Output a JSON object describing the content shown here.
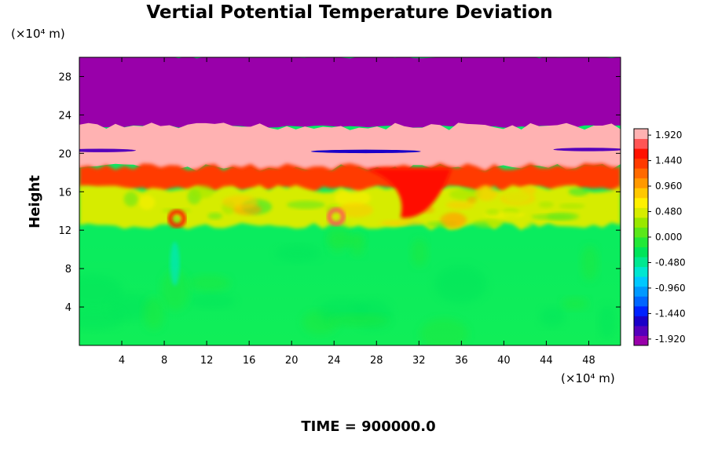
{
  "chart_data": {
    "type": "heatmap",
    "title": "Vertial Potential Temperature Deviation",
    "ylabel": "Height",
    "xlabel": "",
    "y_unit": "(×10⁴ m)",
    "x_unit": "(×10⁴ m)",
    "time_label": "TIME = 900000.0",
    "xlim": [
      0,
      51
    ],
    "ylim": [
      0,
      30
    ],
    "x_ticks": [
      4,
      8,
      12,
      16,
      20,
      24,
      28,
      32,
      36,
      40,
      44,
      48
    ],
    "y_ticks": [
      4,
      8,
      12,
      16,
      20,
      24,
      28
    ],
    "colorbar": {
      "min": -2.04,
      "max": 2.04,
      "labels": [
        "1.920",
        "1.440",
        "0.960",
        "0.480",
        "0.000",
        "-0.480",
        "-0.960",
        "-1.440",
        "-1.920"
      ],
      "label_values": [
        1.92,
        1.44,
        0.96,
        0.48,
        0.0,
        -0.48,
        -0.96,
        -1.44,
        -1.92
      ]
    },
    "field_layers": [
      {
        "name": "upper-purple",
        "y_bottom": 22.8,
        "y_top": 30,
        "value": -2.0
      },
      {
        "name": "pink-band",
        "y_bottom": 18.5,
        "y_top": 22.8,
        "value": 2.0
      },
      {
        "name": "red-orange-turbulence",
        "y_bottom": 16.2,
        "y_top": 18.6,
        "value": 1.3
      },
      {
        "name": "yellow-green-turbulent",
        "y_bottom": 12.4,
        "y_top": 16.3,
        "value": 0.4
      },
      {
        "name": "lower-green",
        "y_bottom": 0,
        "y_top": 12.4,
        "value": -0.1
      }
    ],
    "features": [
      {
        "name": "central-red-plume",
        "x": 31,
        "y": 16.3,
        "value": 1.6
      },
      {
        "name": "red-curl-24",
        "x": 24.2,
        "y": 13.4,
        "value": 1.7
      },
      {
        "name": "red-curl-9",
        "x": 9.2,
        "y": 13.2,
        "value": 1.5
      },
      {
        "name": "blue-streak-20",
        "x": 2,
        "y": 20.3,
        "value": -1.7
      },
      {
        "name": "blue-streak-27",
        "x": 27,
        "y": 20.2,
        "value": -1.5
      },
      {
        "name": "blue-streak-48",
        "x": 48,
        "y": 20.4,
        "value": -1.8
      },
      {
        "name": "cyan-streak-lower",
        "x": 9,
        "y": 8.5,
        "value": -0.6
      }
    ]
  }
}
